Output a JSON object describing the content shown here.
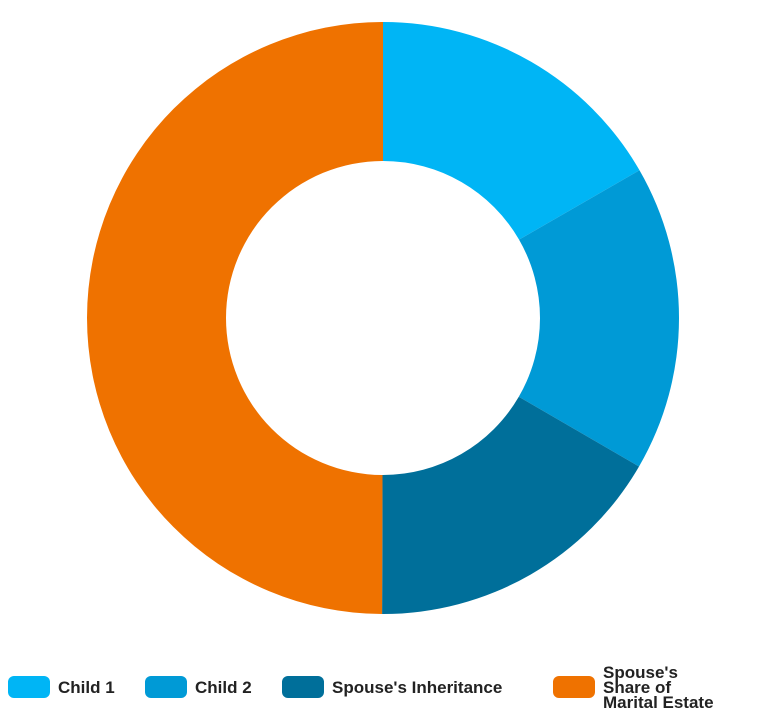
{
  "chart_data": {
    "type": "donut",
    "categories": [
      "Child 1",
      "Child 2",
      "Spouse's Inheritance",
      "Spouse's Share of Marital Estate"
    ],
    "values": [
      16.7,
      16.7,
      16.7,
      50
    ],
    "colors": [
      "#00b5f5",
      "#009ad6",
      "#006f9a",
      "#ef7200"
    ],
    "legend": "bottom"
  }
}
